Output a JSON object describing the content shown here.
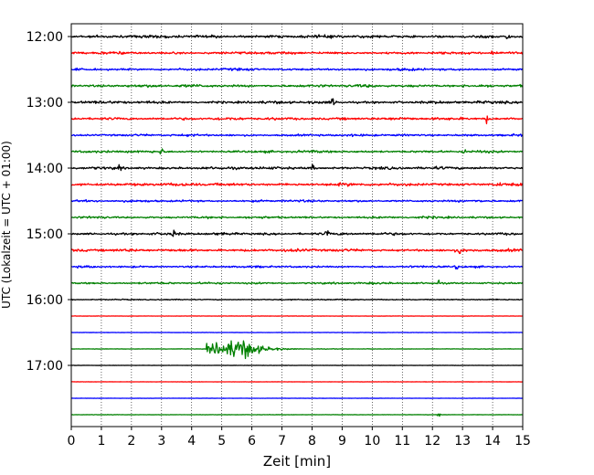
{
  "chart_data": {
    "type": "line",
    "subtype": "helicorder",
    "title": "",
    "xlabel": "Zeit  [min]",
    "ylabel": "UTC (Lokalzeit = UTC + 01:00)",
    "xlim": [
      0,
      15
    ],
    "x_ticks": [
      "0",
      "1",
      "2",
      "3",
      "4",
      "5",
      "6",
      "7",
      "8",
      "9",
      "10",
      "11",
      "12",
      "13",
      "14",
      "15"
    ],
    "y_ticks": [
      {
        "label": "12:00",
        "row": 0
      },
      {
        "label": "13:00",
        "row": 4
      },
      {
        "label": "14:00",
        "row": 8
      },
      {
        "label": "15:00",
        "row": 12
      },
      {
        "label": "16:00",
        "row": 16
      },
      {
        "label": "17:00",
        "row": 20
      }
    ],
    "grid": "vertical dotted",
    "trace_minutes": 15,
    "color_cycle": [
      "#000000",
      "#ff0000",
      "#0000ff",
      "#008000"
    ],
    "rows": [
      {
        "start": "12:00",
        "noise": 0.32,
        "spikes": [
          14.5
        ]
      },
      {
        "start": "12:15",
        "noise": 0.28,
        "spikes": [
          14.0
        ]
      },
      {
        "start": "12:30",
        "noise": 0.26,
        "spikes": []
      },
      {
        "start": "12:45",
        "noise": 0.3,
        "spikes": []
      },
      {
        "start": "13:00",
        "noise": 0.3,
        "spikes": [
          8.7
        ]
      },
      {
        "start": "13:15",
        "noise": 0.3,
        "spikes": [
          13.8
        ]
      },
      {
        "start": "13:30",
        "noise": 0.24,
        "spikes": []
      },
      {
        "start": "13:45",
        "noise": 0.26,
        "spikes": [
          3.0,
          13.1
        ]
      },
      {
        "start": "14:00",
        "noise": 0.3,
        "spikes": [
          1.6,
          8.0
        ]
      },
      {
        "start": "14:15",
        "noise": 0.32,
        "spikes": [
          14.2
        ]
      },
      {
        "start": "14:30",
        "noise": 0.24,
        "spikes": []
      },
      {
        "start": "14:45",
        "noise": 0.24,
        "spikes": []
      },
      {
        "start": "15:00",
        "noise": 0.28,
        "spikes": [
          3.4,
          8.5
        ]
      },
      {
        "start": "15:15",
        "noise": 0.3,
        "spikes": [
          12.9
        ]
      },
      {
        "start": "15:30",
        "noise": 0.22,
        "spikes": [
          12.8
        ]
      },
      {
        "start": "15:45",
        "noise": 0.22,
        "spikes": [
          12.2
        ]
      },
      {
        "start": "16:00",
        "noise": 0.12,
        "spikes": []
      },
      {
        "start": "16:15",
        "noise": 0.04,
        "spikes": []
      },
      {
        "start": "16:30",
        "noise": 0.04,
        "spikes": []
      },
      {
        "start": "16:45",
        "noise": 0.05,
        "spikes": [],
        "event": {
          "start": 4.5,
          "peak": 5.7,
          "end": 7.5,
          "amplitude": 2.1
        }
      },
      {
        "start": "17:00",
        "noise": 0.03,
        "spikes": []
      },
      {
        "start": "17:15",
        "noise": 0.03,
        "spikes": []
      },
      {
        "start": "17:30",
        "noise": 0.03,
        "spikes": []
      },
      {
        "start": "17:45",
        "noise": 0.04,
        "spikes": [
          12.2
        ]
      }
    ]
  }
}
